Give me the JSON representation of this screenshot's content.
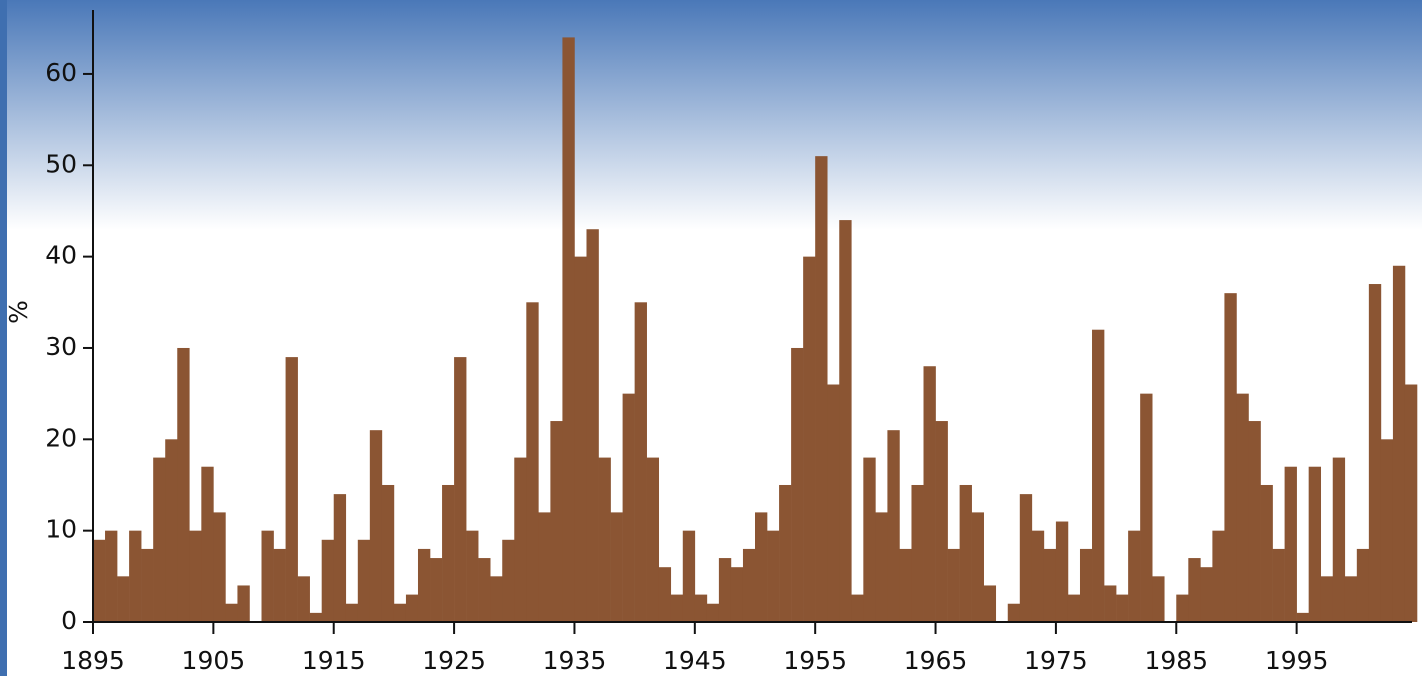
{
  "chart_data": {
    "type": "bar",
    "y_label": "%",
    "color": "#8b5533",
    "x": [
      1895,
      1896,
      1897,
      1898,
      1899,
      1900,
      1901,
      1902,
      1903,
      1904,
      1905,
      1906,
      1907,
      1908,
      1909,
      1910,
      1911,
      1912,
      1913,
      1914,
      1915,
      1916,
      1917,
      1918,
      1919,
      1920,
      1921,
      1922,
      1923,
      1924,
      1925,
      1926,
      1927,
      1928,
      1929,
      1930,
      1931,
      1932,
      1933,
      1934,
      1935,
      1936,
      1937,
      1938,
      1939,
      1940,
      1941,
      1942,
      1943,
      1944,
      1945,
      1946,
      1947,
      1948,
      1949,
      1950,
      1951,
      1952,
      1953,
      1954,
      1955,
      1956,
      1957,
      1958,
      1959,
      1960,
      1961,
      1962,
      1963,
      1964,
      1965,
      1966,
      1967,
      1968,
      1969,
      1970,
      1971,
      1972,
      1973,
      1974,
      1975,
      1976,
      1977,
      1978,
      1979,
      1980,
      1981,
      1982,
      1983,
      1984,
      1985,
      1986,
      1987,
      1988,
      1989,
      1990,
      1991,
      1992,
      1993,
      1994,
      1995,
      1996,
      1997,
      1998,
      1999,
      2000,
      2001,
      2002,
      2003,
      2004
    ],
    "values": [
      9,
      10,
      5,
      10,
      8,
      18,
      20,
      30,
      10,
      17,
      12,
      2,
      4,
      0,
      10,
      8,
      29,
      5,
      1,
      9,
      14,
      2,
      9,
      21,
      15,
      2,
      3,
      8,
      7,
      15,
      29,
      10,
      7,
      5,
      9,
      18,
      35,
      12,
      22,
      64,
      40,
      43,
      18,
      12,
      25,
      35,
      18,
      6,
      3,
      10,
      3,
      2,
      7,
      6,
      8,
      12,
      10,
      15,
      30,
      40,
      51,
      26,
      44,
      3,
      18,
      12,
      21,
      8,
      15,
      28,
      22,
      8,
      15,
      12,
      4,
      0,
      2,
      14,
      10,
      8,
      11,
      3,
      8,
      32,
      4,
      3,
      10,
      25,
      5,
      0,
      3,
      7,
      6,
      10,
      36,
      25,
      22,
      15,
      8,
      17,
      1,
      17,
      5,
      18,
      5,
      8,
      37,
      20,
      39,
      26
    ],
    "xlim": [
      1895,
      2005
    ],
    "xticks": [
      1895,
      1905,
      1915,
      1925,
      1935,
      1945,
      1955,
      1965,
      1975,
      1985,
      1995
    ],
    "ylim": [
      0,
      67
    ],
    "yticks": [
      0,
      10,
      20,
      30,
      40,
      50,
      60
    ]
  }
}
